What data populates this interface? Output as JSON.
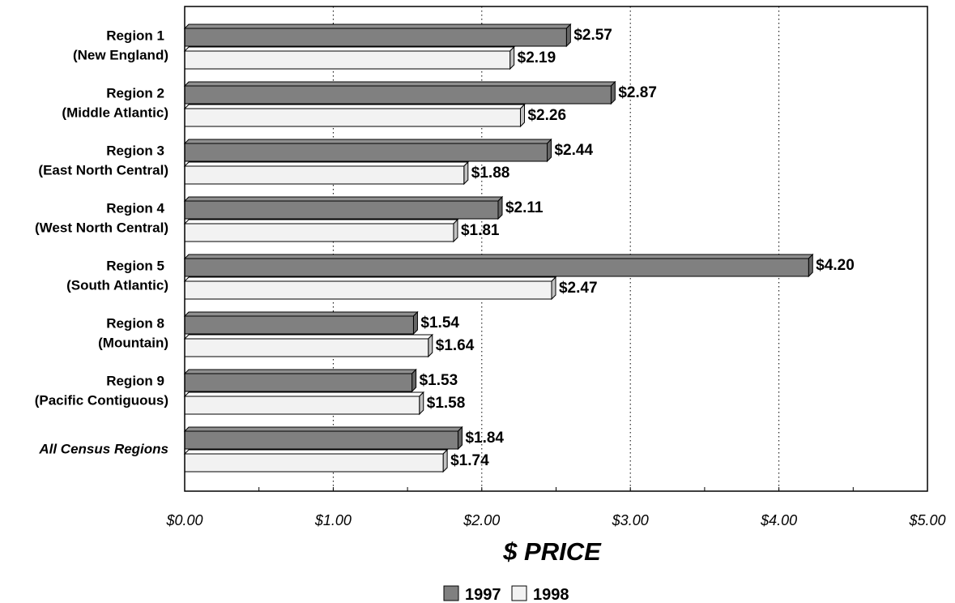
{
  "chart_data": {
    "type": "bar",
    "orientation": "horizontal",
    "categories": [
      {
        "line1": "Region 1",
        "line2": "(New England)"
      },
      {
        "line1": "Region 2",
        "line2": "(Middle Atlantic)"
      },
      {
        "line1": "Region 3",
        "line2": "(East North Central)"
      },
      {
        "line1": "Region 4",
        "line2": "(West North Central)"
      },
      {
        "line1": "Region 5",
        "line2": "(South Atlantic)"
      },
      {
        "line1": "Region 8",
        "line2": "(Mountain)"
      },
      {
        "line1": "Region 9",
        "line2": "(Pacific Contiguous)"
      },
      {
        "line1": "All Census Regions",
        "line2": "",
        "italic": true
      }
    ],
    "series": [
      {
        "name": "1997",
        "color": "#808080",
        "values": [
          2.57,
          2.87,
          2.44,
          2.11,
          4.2,
          1.54,
          1.53,
          1.84
        ],
        "labels": [
          "$2.57",
          "$2.87",
          "$2.44",
          "$2.11",
          "$4.20",
          "$1.54",
          "$1.53",
          "$1.84"
        ]
      },
      {
        "name": "1998",
        "color": "#f2f2f2",
        "values": [
          2.19,
          2.26,
          1.88,
          1.81,
          2.47,
          1.64,
          1.58,
          1.74
        ],
        "labels": [
          "$2.19",
          "$2.26",
          "$1.88",
          "$1.81",
          "$2.47",
          "$1.64",
          "$1.58",
          "$1.74"
        ]
      }
    ],
    "xlim": [
      0,
      5
    ],
    "xticks": [
      {
        "value": 0,
        "label": "$0.00"
      },
      {
        "value": 1,
        "label": "$1.00"
      },
      {
        "value": 2,
        "label": "$2.00"
      },
      {
        "value": 3,
        "label": "$3.00"
      },
      {
        "value": 4,
        "label": "$4.00"
      },
      {
        "value": 5,
        "label": "$5.00"
      }
    ],
    "xlabel": "$ PRICE",
    "grid": "vertical-dotted",
    "legend_position": "bottom-center"
  }
}
